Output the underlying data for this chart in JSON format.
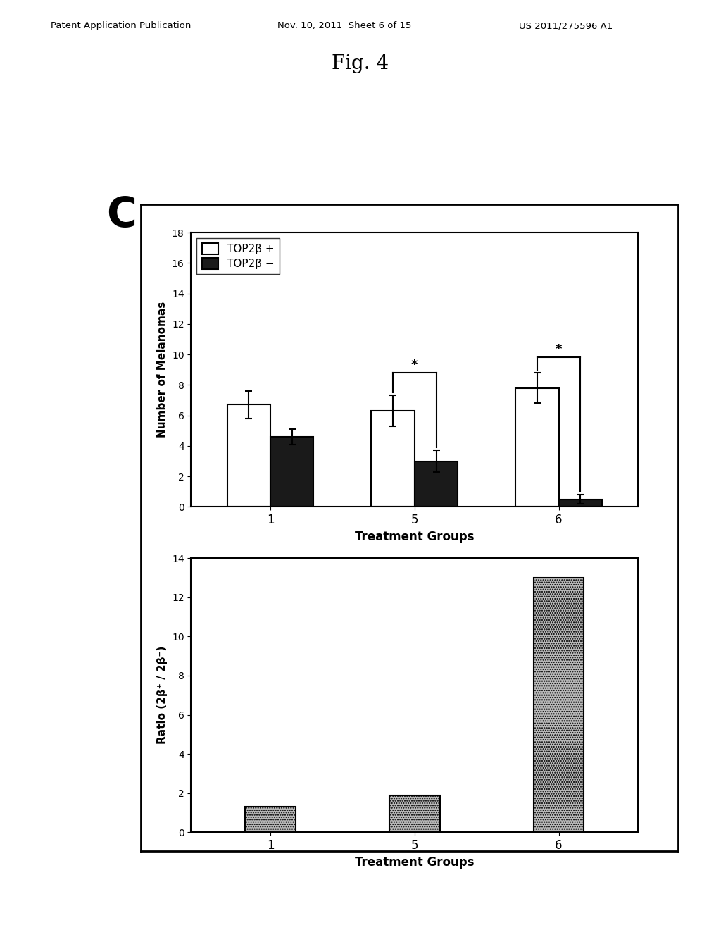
{
  "fig_title": "Fig. 4",
  "panel_label": "C",
  "header_left": "Patent Application Publication",
  "header_mid": "Nov. 10, 2011  Sheet 6 of 15",
  "header_right": "US 2011/275596 A1",
  "top_chart": {
    "groups": [
      "1",
      "5",
      "6"
    ],
    "white_bars": [
      6.7,
      6.3,
      7.8
    ],
    "black_bars": [
      4.6,
      3.0,
      0.5
    ],
    "white_errors": [
      0.9,
      1.0,
      1.0
    ],
    "black_errors": [
      0.5,
      0.7,
      0.3
    ],
    "ylabel": "Number of Melanomas",
    "xlabel": "Treatment Groups",
    "ylim": [
      0,
      18
    ],
    "yticks": [
      0,
      2,
      4,
      6,
      8,
      10,
      12,
      14,
      16,
      18
    ],
    "legend_label_white": "TOP2β +",
    "legend_label_black": "TOP2β −"
  },
  "bottom_chart": {
    "groups": [
      "1",
      "5",
      "6"
    ],
    "values": [
      1.3,
      1.9,
      13.0
    ],
    "ylabel": "Ratio (2β⁺ / 2β⁻)",
    "xlabel": "Treatment Groups",
    "ylim": [
      0,
      14
    ],
    "yticks": [
      0,
      2,
      4,
      6,
      8,
      10,
      12,
      14
    ]
  },
  "bar_width": 0.3,
  "background_color": "#ffffff",
  "plot_bg_color": "#ffffff",
  "bar_white_color": "#ffffff",
  "bar_black_color": "#1a1a1a",
  "bar_gray_color": "#aaaaaa",
  "bar_edge_color": "#000000",
  "outer_box_color": "#000000"
}
